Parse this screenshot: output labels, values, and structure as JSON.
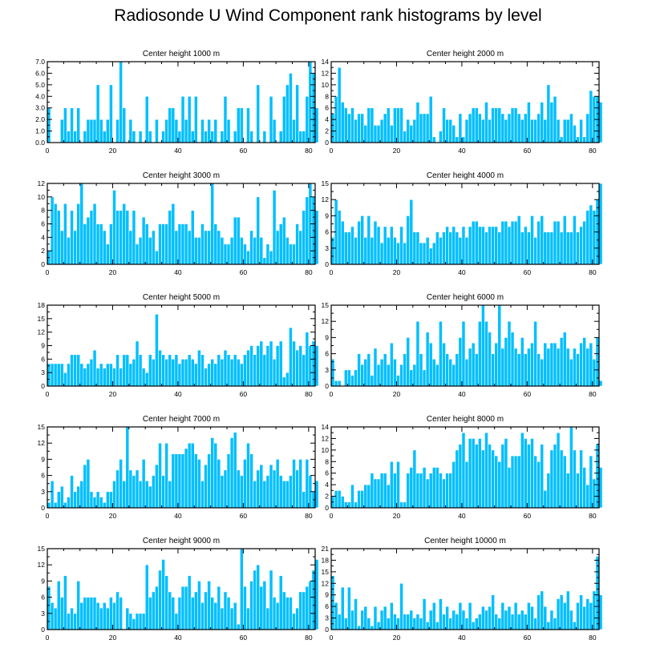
{
  "chart_data": {
    "title": "Radiosonde U Wind Component rank histograms by level",
    "type": "bar",
    "bar_color": "#00bfff",
    "bar_edge_color": "#ffffff",
    "axis_color": "#000000",
    "xlim": [
      0,
      82
    ],
    "x_ticks": [
      0,
      20,
      40,
      60,
      80
    ],
    "panels": [
      {
        "title": "Center height 1000 m",
        "ylim": [
          0,
          7
        ],
        "y_ticks": [
          0,
          1,
          2,
          3,
          4,
          5,
          6,
          7
        ],
        "y_tick_labels": [
          "0.0",
          "1.0",
          "2.0",
          "3.0",
          "4.0",
          "5.0",
          "6.0",
          "7.0"
        ],
        "values": [
          3,
          0,
          0,
          0,
          2,
          3,
          1,
          3,
          1,
          3,
          0,
          1,
          2,
          2,
          2,
          5,
          2,
          1,
          2,
          5,
          0,
          2,
          7,
          3,
          0,
          2,
          1,
          0,
          1,
          0,
          4,
          1,
          0,
          2,
          0,
          1,
          2,
          3,
          3,
          2,
          1,
          4,
          2,
          4,
          1,
          4,
          0,
          2,
          1,
          2,
          1,
          2,
          0,
          1,
          4,
          2,
          0,
          1,
          3,
          3,
          0,
          3,
          1,
          0,
          5,
          0,
          1,
          0,
          4,
          2,
          0,
          1,
          4,
          5,
          6,
          2,
          5,
          1,
          1,
          4,
          7,
          6,
          3
        ]
      },
      {
        "title": "Center height 2000 m",
        "ylim": [
          0,
          14
        ],
        "y_ticks": [
          0,
          2,
          4,
          6,
          8,
          10,
          12,
          14
        ],
        "y_tick_labels": [
          "0",
          "2",
          "4",
          "6",
          "8",
          "10",
          "12",
          "14"
        ],
        "values": [
          5,
          8,
          13,
          7,
          6,
          5,
          6,
          4,
          5,
          5,
          3,
          6,
          6,
          3,
          3,
          4,
          5,
          6,
          3,
          6,
          6,
          6,
          2,
          4,
          3,
          4,
          7,
          5,
          5,
          5,
          8,
          1,
          0,
          2,
          6,
          4,
          4,
          3,
          1,
          5,
          1,
          4,
          5,
          6,
          6,
          5,
          4,
          7,
          4,
          6,
          6,
          6,
          5,
          4,
          5,
          6,
          6,
          5,
          4,
          5,
          7,
          4,
          4,
          5,
          7,
          4,
          10,
          7,
          8,
          4,
          1,
          4,
          4,
          5,
          3,
          1,
          4,
          1,
          5,
          9,
          8,
          8,
          7
        ]
      },
      {
        "title": "Center height 3000 m",
        "ylim": [
          0,
          12
        ],
        "y_ticks": [
          0,
          2,
          4,
          6,
          8,
          10,
          12
        ],
        "y_tick_labels": [
          "0",
          "2",
          "4",
          "6",
          "8",
          "10",
          "12"
        ],
        "values": [
          2,
          10,
          9,
          8,
          5,
          9,
          4,
          8,
          5,
          9,
          12,
          6,
          7,
          8,
          9,
          6,
          6,
          5,
          3,
          6,
          11,
          8,
          8,
          9,
          8,
          5,
          8,
          3,
          4,
          7,
          6,
          4,
          5,
          2,
          6,
          6,
          6,
          8,
          9,
          5,
          6,
          6,
          6,
          5,
          8,
          4,
          4,
          6,
          5,
          5,
          12,
          6,
          5,
          4,
          3,
          3,
          4,
          7,
          7,
          4,
          3,
          2,
          5,
          4,
          10,
          4,
          1,
          3,
          2,
          11,
          5,
          6,
          7,
          4,
          3,
          3,
          6,
          5,
          8,
          10,
          12,
          10,
          8
        ]
      },
      {
        "title": "Center height 4000 m",
        "ylim": [
          0,
          15
        ],
        "y_ticks": [
          0,
          3,
          6,
          9,
          12,
          15
        ],
        "y_tick_labels": [
          "0",
          "3",
          "6",
          "9",
          "12",
          "15"
        ],
        "values": [
          5,
          12,
          10,
          8,
          6,
          6,
          7,
          5,
          8,
          9,
          5,
          9,
          5,
          8,
          7,
          4,
          7,
          5,
          7,
          5,
          4,
          7,
          4,
          9,
          12,
          6,
          6,
          4,
          4,
          5,
          3,
          4,
          6,
          5,
          6,
          7,
          6,
          7,
          6,
          5,
          7,
          5,
          7,
          8,
          8,
          7,
          7,
          6,
          7,
          7,
          7,
          6,
          8,
          8,
          7,
          8,
          8,
          9,
          6,
          7,
          6,
          9,
          5,
          8,
          9,
          6,
          6,
          6,
          8,
          8,
          6,
          9,
          6,
          6,
          9,
          6,
          7,
          8,
          10,
          11,
          10,
          12,
          15
        ]
      },
      {
        "title": "Center height 5000 m",
        "ylim": [
          0,
          18
        ],
        "y_ticks": [
          0,
          3,
          6,
          9,
          12,
          15,
          18
        ],
        "y_tick_labels": [
          "0",
          "3",
          "6",
          "9",
          "12",
          "15",
          "18"
        ],
        "values": [
          5,
          5,
          5,
          5,
          5,
          3,
          5,
          7,
          7,
          7,
          5,
          4,
          5,
          6,
          8,
          4,
          5,
          4,
          5,
          5,
          4,
          7,
          4,
          7,
          7,
          5,
          6,
          10,
          7,
          4,
          3,
          7,
          6,
          16,
          8,
          7,
          6,
          7,
          6,
          7,
          5,
          6,
          6,
          7,
          6,
          5,
          8,
          7,
          4,
          5,
          6,
          5,
          7,
          6,
          8,
          7,
          6,
          7,
          6,
          5,
          7,
          8,
          9,
          7,
          9,
          10,
          7,
          9,
          10,
          6,
          9,
          10,
          2,
          3,
          13,
          10,
          8,
          9,
          7,
          12,
          9,
          10,
          9
        ]
      },
      {
        "title": "Center height 6000 m",
        "ylim": [
          0,
          15
        ],
        "y_ticks": [
          0,
          3,
          6,
          9,
          12,
          15
        ],
        "y_tick_labels": [
          "0",
          "3",
          "6",
          "9",
          "12",
          "15"
        ],
        "values": [
          5,
          1,
          1,
          0,
          3,
          3,
          2,
          3,
          6,
          4,
          5,
          6,
          2,
          7,
          4,
          5,
          6,
          4,
          8,
          5,
          2,
          4,
          6,
          9,
          3,
          4,
          12,
          6,
          3,
          10,
          8,
          5,
          4,
          12,
          8,
          6,
          5,
          4,
          6,
          9,
          12,
          5,
          7,
          8,
          6,
          12,
          15,
          12,
          10,
          6,
          8,
          15,
          7,
          9,
          12,
          10,
          7,
          6,
          9,
          6,
          7,
          8,
          12,
          6,
          5,
          8,
          7,
          8,
          8,
          7,
          9,
          10,
          7,
          5,
          7,
          6,
          8,
          9,
          7,
          8,
          5,
          9,
          1
        ]
      },
      {
        "title": "Center height 7000 m",
        "ylim": [
          0,
          15
        ],
        "y_ticks": [
          0,
          3,
          6,
          9,
          12,
          15
        ],
        "y_tick_labels": [
          "0",
          "3",
          "6",
          "9",
          "12",
          "15"
        ],
        "values": [
          1,
          5,
          1,
          3,
          4,
          1,
          2,
          6,
          3,
          4,
          5,
          8,
          9,
          3,
          2,
          3,
          2,
          1,
          3,
          3,
          5,
          7,
          9,
          5,
          15,
          7,
          6,
          7,
          5,
          9,
          5,
          4,
          6,
          8,
          12,
          6,
          12,
          5,
          10,
          10,
          10,
          10,
          11,
          12,
          12,
          10,
          9,
          5,
          8,
          10,
          13,
          12,
          9,
          6,
          7,
          10,
          13,
          14,
          7,
          6,
          9,
          12,
          10,
          5,
          7,
          8,
          5,
          6,
          8,
          7,
          9,
          6,
          5,
          5,
          6,
          9,
          7,
          9,
          3,
          9,
          6,
          3,
          5
        ]
      },
      {
        "title": "Center height 8000 m",
        "ylim": [
          0,
          14
        ],
        "y_ticks": [
          0,
          2,
          4,
          6,
          8,
          10,
          12,
          14
        ],
        "y_tick_labels": [
          "0",
          "2",
          "4",
          "6",
          "8",
          "10",
          "12",
          "14"
        ],
        "values": [
          2,
          3,
          3,
          2,
          1,
          1,
          4,
          1,
          3,
          3,
          4,
          4,
          6,
          5,
          5,
          6,
          6,
          4,
          8,
          6,
          8,
          1,
          1,
          6,
          7,
          10,
          6,
          6,
          7,
          5,
          6,
          7,
          7,
          6,
          5,
          6,
          6,
          8,
          10,
          11,
          13,
          8,
          12,
          12,
          11,
          12,
          10,
          13,
          11,
          10,
          9,
          8,
          11,
          12,
          7,
          9,
          9,
          9,
          13,
          12,
          11,
          12,
          9,
          8,
          11,
          3,
          6,
          10,
          11,
          13,
          10,
          9,
          6,
          14,
          10,
          6,
          10,
          7,
          4,
          9,
          5,
          11,
          7
        ]
      },
      {
        "title": "Center height 9000 m",
        "ylim": [
          0,
          15
        ],
        "y_ticks": [
          0,
          3,
          6,
          9,
          12,
          15
        ],
        "y_tick_labels": [
          "0",
          "3",
          "6",
          "9",
          "12",
          "15"
        ],
        "values": [
          8,
          5,
          4,
          9,
          6,
          10,
          3,
          4,
          3,
          9,
          5,
          6,
          6,
          6,
          6,
          5,
          4,
          5,
          4,
          6,
          5,
          7,
          6,
          0,
          4,
          3,
          2,
          3,
          3,
          3,
          12,
          6,
          7,
          8,
          11,
          13,
          10,
          7,
          6,
          3,
          6,
          8,
          8,
          10,
          6,
          7,
          9,
          5,
          7,
          9,
          6,
          5,
          8,
          4,
          7,
          6,
          4,
          5,
          1,
          15,
          8,
          4,
          9,
          11,
          12,
          8,
          9,
          4,
          11,
          6,
          5,
          10,
          7,
          6,
          6,
          3,
          4,
          7,
          7,
          8,
          9,
          11,
          13
        ]
      },
      {
        "title": "Center height 10000 m",
        "ylim": [
          0,
          21
        ],
        "y_ticks": [
          0,
          3,
          6,
          9,
          12,
          15,
          18,
          21
        ],
        "y_tick_labels": [
          "0",
          "3",
          "6",
          "9",
          "12",
          "15",
          "18",
          "21"
        ],
        "values": [
          14,
          7,
          4,
          11,
          3,
          11,
          5,
          8,
          1,
          5,
          6,
          3,
          1,
          6,
          2,
          5,
          6,
          3,
          7,
          4,
          3,
          12,
          4,
          4,
          5,
          3,
          4,
          3,
          8,
          2,
          5,
          7,
          2,
          8,
          4,
          6,
          3,
          5,
          4,
          7,
          5,
          3,
          7,
          2,
          3,
          4,
          6,
          5,
          6,
          9,
          4,
          3,
          7,
          5,
          6,
          4,
          7,
          4,
          5,
          4,
          7,
          6,
          3,
          9,
          10,
          6,
          2,
          5,
          3,
          8,
          9,
          7,
          10,
          5,
          2,
          7,
          9,
          6,
          8,
          7,
          10,
          19,
          9
        ]
      }
    ]
  }
}
